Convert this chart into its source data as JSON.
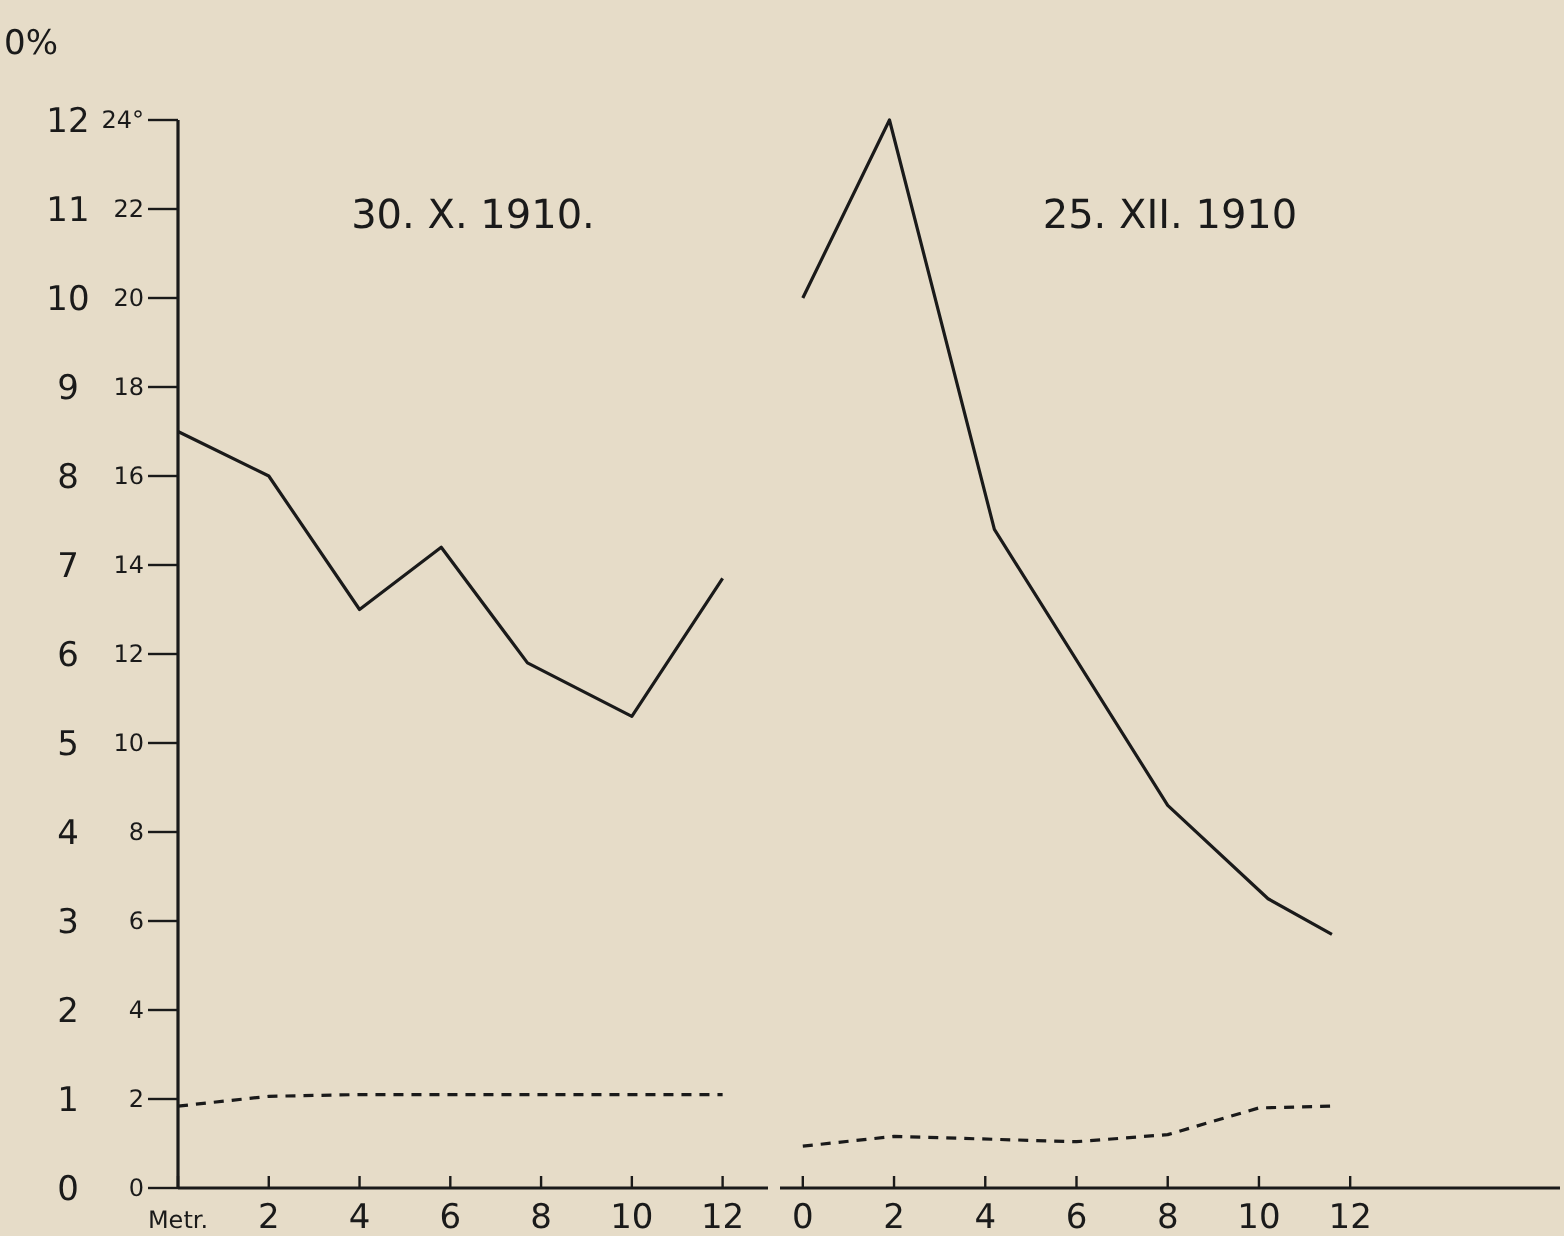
{
  "chart_data": [
    {
      "type": "line",
      "title": "30. X. 1910.",
      "ylabel": "0%",
      "xlim": [
        0,
        13
      ],
      "xticks": [
        {
          "value": 0,
          "label": "Metr."
        },
        2,
        4,
        6,
        8,
        10,
        12
      ],
      "ylim": [
        0,
        12
      ],
      "yticks": [
        0,
        1,
        2,
        3,
        4,
        5,
        6,
        7,
        8,
        9,
        10,
        11,
        12
      ],
      "y2lim": [
        0,
        24
      ],
      "y2ticks": [
        0,
        2,
        4,
        6,
        8,
        10,
        12,
        14,
        16,
        18,
        20,
        22,
        {
          "value": 24,
          "label": "24°"
        }
      ],
      "grid": false,
      "series": [
        {
          "color": "#1a1a1a",
          "line_style": "solid",
          "x": [
            0,
            2,
            4,
            5.8,
            7.7,
            10,
            12
          ],
          "values": [
            8.5,
            8.0,
            6.5,
            7.2,
            5.9,
            5.3,
            6.85
          ]
        },
        {
          "color": "#1a1a1a",
          "line_style": "dashed",
          "x": [
            0,
            2,
            4,
            6,
            8,
            10,
            12
          ],
          "values": [
            0.92,
            1.03,
            1.05,
            1.05,
            1.05,
            1.05,
            1.05
          ]
        }
      ]
    },
    {
      "type": "line",
      "title": "25. XII. 1910",
      "xlim": [
        -0.5,
        16.6
      ],
      "xticks": [
        0,
        2,
        4,
        6,
        8,
        10,
        12
      ],
      "ylim": [
        0,
        12
      ],
      "tick_labels": "x",
      "grid": false,
      "series": [
        {
          "color": "#1a1a1a",
          "line_style": "solid",
          "x": [
            0,
            1.9,
            4.2,
            8,
            10.2,
            11.6
          ],
          "values": [
            10,
            12,
            7.4,
            4.3,
            3.25,
            2.85
          ]
        },
        {
          "color": "#1a1a1a",
          "line_style": "dashed",
          "x": [
            0,
            2,
            6,
            8,
            10,
            11.6
          ],
          "values": [
            0.47,
            0.58,
            0.52,
            0.6,
            0.9,
            0.92
          ]
        }
      ]
    }
  ]
}
